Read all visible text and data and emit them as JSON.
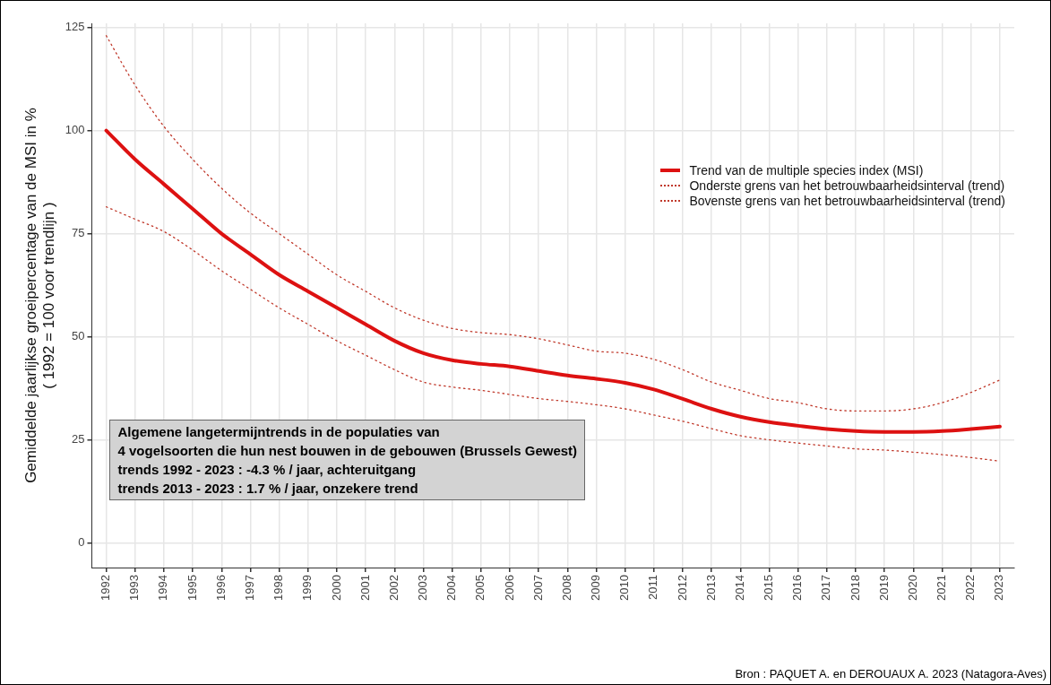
{
  "chart_data": {
    "type": "line",
    "ylabel": "Gemiddelde jaarlijkse groeipercentage van de MSI in %\n( 1992 = 100 voor trendlijn )",
    "categories": [
      "1992",
      "1993",
      "1994",
      "1995",
      "1996",
      "1997",
      "1998",
      "1999",
      "2000",
      "2001",
      "2002",
      "2003",
      "2004",
      "2005",
      "2006",
      "2007",
      "2008",
      "2009",
      "2010",
      "2011",
      "2012",
      "2013",
      "2014",
      "2015",
      "2016",
      "2017",
      "2018",
      "2019",
      "2020",
      "2021",
      "2022",
      "2023"
    ],
    "series": [
      {
        "name": "Trend van de multiple species index (MSI)",
        "color": "#dd1111",
        "line_style": "solid",
        "values": [
          100,
          93,
          87,
          81,
          75,
          70,
          65,
          61,
          57,
          53,
          49,
          46,
          44.3,
          43.4,
          42.8,
          41.7,
          40.6,
          39.8,
          38.8,
          37.2,
          34.9,
          32.5,
          30.6,
          29.3,
          28.4,
          27.6,
          27.1,
          26.9,
          26.9,
          27.1,
          27.6,
          28.2
        ]
      },
      {
        "name": "Onderste grens van het betrouwbaarheidsinterval (trend)",
        "color": "#c0392b",
        "line_style": "dotted",
        "values": [
          81.5,
          78.5,
          75.5,
          71,
          66,
          61.5,
          57,
          53,
          49,
          45.5,
          42,
          39,
          37.8,
          37,
          36,
          35,
          34.3,
          33.5,
          32.5,
          31,
          29.5,
          27.7,
          26,
          25,
          24.2,
          23.5,
          22.8,
          22.5,
          22,
          21.4,
          20.7,
          19.8
        ]
      },
      {
        "name": "Bovenste grens van het betrouwbaarheidsinterval (trend)",
        "color": "#c0392b",
        "line_style": "dotted",
        "values": [
          123,
          111,
          101,
          93,
          86,
          80,
          75,
          70,
          65,
          61,
          57,
          54,
          52,
          51,
          50.5,
          49.5,
          48,
          46.5,
          46,
          44.5,
          42,
          39,
          37,
          35,
          34,
          32.5,
          32,
          32,
          32.5,
          34,
          36.5,
          39.5
        ]
      }
    ],
    "ylim": [
      -6,
      126
    ],
    "yticks": [
      0,
      25,
      50,
      75,
      100,
      125
    ],
    "grid": true,
    "legend": "top right",
    "marker": "none",
    "annotations": [
      "Algemene langetermijntrends in de populaties van\n4 vogelsoorten die hun nest bouwen in de gebouwen (Brussels Gewest)\ntrends 1992 - 2023 : -4.3 % / jaar, achteruitgang\ntrends 2013 - 2023 : 1.7 % / jaar, onzekere trend",
      "Bron : PAQUET A. en DEROUAUX A. 2023 (Natagora-Aves)"
    ]
  }
}
